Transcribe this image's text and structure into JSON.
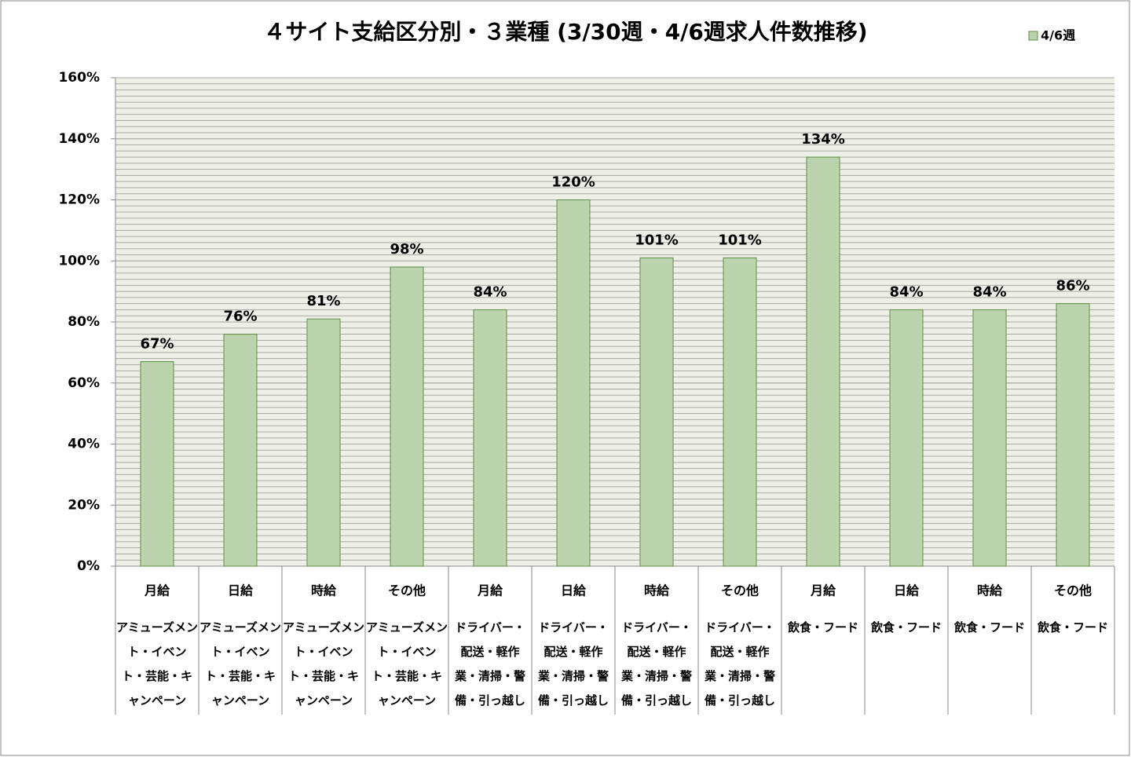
{
  "chart_data": {
    "type": "bar",
    "title": "４サイト支給区分別・３業種 (3/30週・4/6週求人件数推移)",
    "categories": [
      "月給",
      "日給",
      "時給",
      "その他",
      "月給",
      "日給",
      "時給",
      "その他",
      "月給",
      "日給",
      "時給",
      "その他"
    ],
    "category_groups": [
      "アミューズメント・イベント・芸能・キャンペーン",
      "アミューズメント・イベント・芸能・キャンペーン",
      "アミューズメント・イベント・芸能・キャンペーン",
      "アミューズメント・イベント・芸能・キャンペーン",
      "ドライバー・配送・軽作業・清掃・警備・引っ越し",
      "ドライバー・配送・軽作業・清掃・警備・引っ越し",
      "ドライバー・配送・軽作業・清掃・警備・引っ越し",
      "ドライバー・配送・軽作業・清掃・警備・引っ越し",
      "飲食・フード",
      "飲食・フード",
      "飲食・フード",
      "飲食・フード"
    ],
    "series": [
      {
        "name": "4/6週",
        "color": "#bcd4ae",
        "values": [
          67,
          76,
          81,
          98,
          84,
          120,
          101,
          101,
          134,
          84,
          84,
          86
        ],
        "value_labels": [
          "67%",
          "76%",
          "81%",
          "98%",
          "84%",
          "120%",
          "101%",
          "101%",
          "134%",
          "84%",
          "84%",
          "86%"
        ]
      }
    ],
    "ylim": [
      0,
      160
    ],
    "yticks": [
      {
        "value": 0,
        "label": "0%"
      },
      {
        "value": 20,
        "label": "20%"
      },
      {
        "value": 40,
        "label": "40%"
      },
      {
        "value": 60,
        "label": "60%"
      },
      {
        "value": 80,
        "label": "80%"
      },
      {
        "value": 100,
        "label": "100%"
      },
      {
        "value": 120,
        "label": "120%"
      },
      {
        "value": 140,
        "label": "140%"
      },
      {
        "value": 160,
        "label": "160%"
      }
    ],
    "grid": true,
    "minor_grid_step": 2,
    "legend": "top-right"
  }
}
